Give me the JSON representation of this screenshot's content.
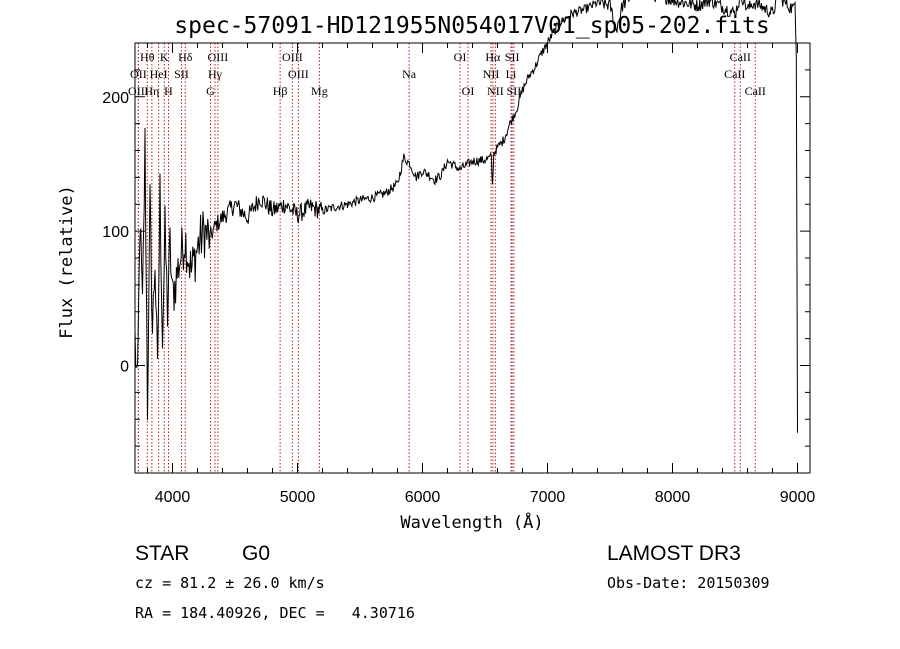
{
  "chart_data": {
    "type": "line",
    "title": "spec-57091-HD121955N054017V01_sp05-202.fits",
    "xlabel": "Wavelength (Å)",
    "ylabel": "Flux (relative)",
    "xlim": [
      3700,
      9100
    ],
    "ylim": [
      -80,
      240
    ],
    "xticks": [
      4000,
      5000,
      6000,
      7000,
      8000,
      9000
    ],
    "yticks": [
      0,
      100,
      200
    ],
    "series": [
      {
        "name": "flux",
        "x": [
          3700,
          3720,
          3740,
          3760,
          3780,
          3800,
          3820,
          3840,
          3860,
          3880,
          3900,
          3920,
          3940,
          3960,
          3980,
          4000,
          4050,
          4100,
          4150,
          4200,
          4250,
          4300,
          4350,
          4400,
          4500,
          4600,
          4700,
          4800,
          4900,
          5000,
          5100,
          5200,
          5300,
          5400,
          5500,
          5600,
          5700,
          5800,
          5850,
          5900,
          5950,
          6000,
          6050,
          6100,
          6150,
          6200,
          6300,
          6400,
          6500,
          6550,
          6560,
          6570,
          6600,
          6650,
          6700,
          6750,
          6800,
          6850,
          6900,
          6950,
          7000,
          7050,
          7100,
          7200,
          7300,
          7400,
          7500,
          7550,
          7600,
          7650,
          7700,
          7750,
          7800,
          7850,
          7900,
          8000,
          8100,
          8200,
          8300,
          8400,
          8500,
          8550,
          8600,
          8650,
          8700,
          8800,
          8850,
          8900,
          8950,
          8980,
          8990,
          9000
        ],
        "y": [
          20,
          -20,
          110,
          40,
          165,
          -30,
          120,
          25,
          80,
          -10,
          130,
          20,
          100,
          40,
          90,
          50,
          75,
          95,
          70,
          88,
          100,
          95,
          105,
          110,
          120,
          110,
          125,
          115,
          120,
          112,
          118,
          115,
          118,
          120,
          123,
          125,
          128,
          135,
          155,
          150,
          140,
          145,
          142,
          138,
          142,
          152,
          146,
          152,
          153,
          155,
          133,
          158,
          162,
          168,
          180,
          190,
          205,
          215,
          222,
          232,
          240,
          248,
          255,
          262,
          265,
          270,
          268,
          250,
          268,
          273,
          278,
          284,
          278,
          275,
          276,
          272,
          270,
          268,
          272,
          267,
          262,
          276,
          265,
          270,
          268,
          262,
          275,
          270,
          266,
          270,
          230,
          -50
        ]
      }
    ],
    "spectral_lines": [
      {
        "name": "Hθ",
        "wavelength": 3798,
        "row": 0
      },
      {
        "name": "K",
        "wavelength": 3934,
        "row": 0
      },
      {
        "name": "Hδ",
        "wavelength": 4102,
        "row": 0
      },
      {
        "name": "OIII",
        "wavelength": 4363,
        "row": 0
      },
      {
        "name": "OIII",
        "wavelength": 4959,
        "row": 0
      },
      {
        "name": "OI",
        "wavelength": 6300,
        "row": 0
      },
      {
        "name": "Hα",
        "wavelength": 6563,
        "row": 0
      },
      {
        "name": "SII",
        "wavelength": 6717,
        "row": 0
      },
      {
        "name": "CaII",
        "wavelength": 8542,
        "row": 0
      },
      {
        "name": "OII",
        "wavelength": 3727,
        "row": 1
      },
      {
        "name": "HeI",
        "wavelength": 3889,
        "row": 1
      },
      {
        "name": "SII",
        "wavelength": 4072,
        "row": 1
      },
      {
        "name": "Hγ",
        "wavelength": 4340,
        "row": 1
      },
      {
        "name": "OIII",
        "wavelength": 5007,
        "row": 1
      },
      {
        "name": "Na",
        "wavelength": 5893,
        "row": 1
      },
      {
        "name": "NII",
        "wavelength": 6548,
        "row": 1
      },
      {
        "name": "Li",
        "wavelength": 6708,
        "row": 1
      },
      {
        "name": "CaII",
        "wavelength": 8498,
        "row": 1
      },
      {
        "name": "OIII",
        "wavelength": 3727,
        "row": 2
      },
      {
        "name": "Hη",
        "wavelength": 3835,
        "row": 2
      },
      {
        "name": "H",
        "wavelength": 3968,
        "row": 2
      },
      {
        "name": "G",
        "wavelength": 4304,
        "row": 2
      },
      {
        "name": "Hβ",
        "wavelength": 4861,
        "row": 2
      },
      {
        "name": "Mg",
        "wavelength": 5175,
        "row": 2
      },
      {
        "name": "OI",
        "wavelength": 6364,
        "row": 2
      },
      {
        "name": "NII",
        "wavelength": 6583,
        "row": 2
      },
      {
        "name": "SII",
        "wavelength": 6731,
        "row": 2
      },
      {
        "name": "CaII",
        "wavelength": 8662,
        "row": 2
      }
    ]
  },
  "info": {
    "object_class": "STAR",
    "subclass": "G0",
    "survey": "LAMOST DR3",
    "cz": "cz = 81.2 ± 26.0 km/s",
    "obs_date": "Obs-Date: 20150309",
    "coords": "RA = 184.40926, DEC =   4.30716"
  }
}
